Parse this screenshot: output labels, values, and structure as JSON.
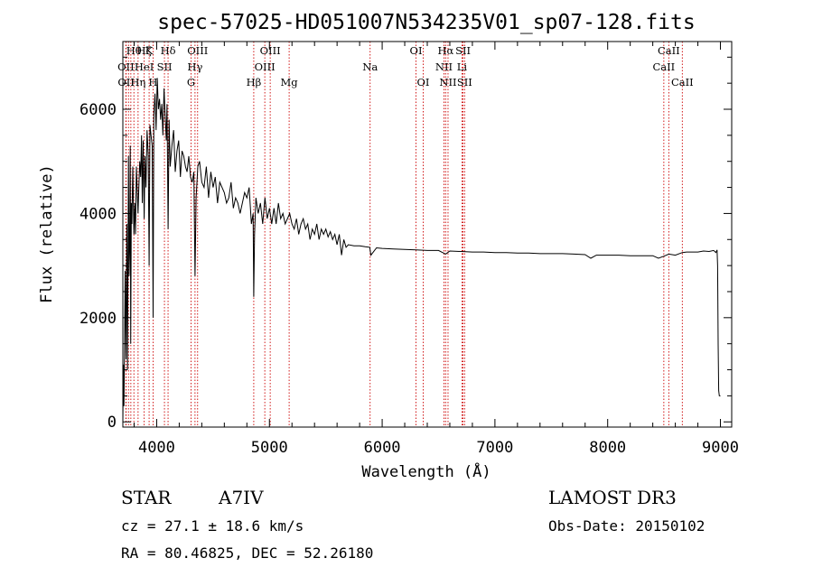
{
  "chart_data": {
    "type": "line",
    "title": "spec-57025-HD051007N534235V01_sp07-128.fits",
    "xlabel": "Wavelength (Å)",
    "ylabel": "Flux (relative)",
    "xlim": [
      3700,
      9100
    ],
    "ylim": [
      -100,
      7300
    ],
    "xticks": [
      4000,
      5000,
      6000,
      7000,
      8000,
      9000
    ],
    "xtick_labels": [
      "4000",
      "5000",
      "6000",
      "7000",
      "8000",
      "9000"
    ],
    "yticks": [
      0,
      2000,
      4000,
      6000
    ],
    "ytick_labels": [
      "0",
      "2000",
      "4000",
      "6000"
    ],
    "series": [
      {
        "name": "spectrum",
        "x": [
          3700,
          3705,
          3710,
          3715,
          3720,
          3728,
          3735,
          3742,
          3750,
          3755,
          3760,
          3766,
          3770,
          3775,
          3780,
          3788,
          3798,
          3806,
          3812,
          3820,
          3828,
          3835,
          3842,
          3850,
          3858,
          3866,
          3872,
          3880,
          3889,
          3896,
          3905,
          3915,
          3925,
          3933,
          3940,
          3950,
          3960,
          3968,
          3975,
          3985,
          3995,
          4005,
          4015,
          4025,
          4035,
          4045,
          4055,
          4065,
          4075,
          4085,
          4092,
          4101,
          4110,
          4120,
          4135,
          4150,
          4165,
          4180,
          4195,
          4210,
          4225,
          4240,
          4255,
          4270,
          4285,
          4300,
          4315,
          4330,
          4340,
          4350,
          4365,
          4380,
          4400,
          4420,
          4440,
          4460,
          4480,
          4500,
          4520,
          4540,
          4560,
          4580,
          4600,
          4620,
          4640,
          4660,
          4680,
          4700,
          4720,
          4740,
          4760,
          4780,
          4800,
          4820,
          4840,
          4855,
          4861,
          4868,
          4880,
          4900,
          4920,
          4940,
          4960,
          4980,
          5000,
          5020,
          5040,
          5060,
          5080,
          5100,
          5120,
          5140,
          5160,
          5180,
          5200,
          5220,
          5240,
          5260,
          5280,
          5300,
          5320,
          5340,
          5360,
          5380,
          5400,
          5420,
          5440,
          5460,
          5480,
          5500,
          5520,
          5540,
          5560,
          5580,
          5600,
          5620,
          5640,
          5660,
          5680,
          5700,
          5750,
          5800,
          5850,
          5890,
          5900,
          5950,
          6000,
          6100,
          6200,
          6300,
          6400,
          6500,
          6563,
          6600,
          6700,
          6800,
          6900,
          7000,
          7100,
          7200,
          7300,
          7400,
          7500,
          7600,
          7700,
          7800,
          7850,
          7900,
          8000,
          8100,
          8200,
          8300,
          8400,
          8450,
          8500,
          8542,
          8600,
          8662,
          8700,
          8800,
          8850,
          8900,
          8940,
          8960,
          8970,
          8975,
          8980,
          8985,
          8990,
          9000
        ],
        "y": [
          0,
          1100,
          300,
          1500,
          2900,
          1200,
          3800,
          1000,
          5100,
          2800,
          3300,
          5300,
          1500,
          4200,
          3800,
          4900,
          3600,
          4200,
          3600,
          4900,
          4400,
          4000,
          4500,
          5000,
          4700,
          5500,
          4200,
          5400,
          3900,
          5100,
          4500,
          5600,
          5100,
          3000,
          5700,
          5500,
          5300,
          2000,
          5900,
          6300,
          5600,
          6600,
          6000,
          6200,
          5800,
          6100,
          5500,
          6400,
          5900,
          5400,
          6100,
          3700,
          5800,
          4900,
          5300,
          5600,
          4800,
          5200,
          5400,
          4700,
          5200,
          5100,
          4900,
          4800,
          5100,
          4700,
          4600,
          4800,
          2800,
          4300,
          4900,
          5000,
          4600,
          4500,
          4900,
          4300,
          4800,
          4500,
          4700,
          4200,
          4600,
          4500,
          4400,
          4200,
          4300,
          4600,
          4100,
          4300,
          4200,
          4000,
          4200,
          4400,
          4300,
          4500,
          3800,
          4000,
          2400,
          3600,
          4300,
          4000,
          4200,
          3800,
          4300,
          3900,
          4100,
          3800,
          4100,
          3800,
          4200,
          3900,
          4000,
          3800,
          3900,
          4000,
          3800,
          3700,
          3900,
          3600,
          3800,
          3900,
          3700,
          3800,
          3500,
          3700,
          3600,
          3800,
          3500,
          3700,
          3600,
          3700,
          3550,
          3650,
          3500,
          3600,
          3400,
          3600,
          3200,
          3500,
          3350,
          3400,
          3380,
          3380,
          3360,
          3350,
          3200,
          3340,
          3330,
          3320,
          3310,
          3300,
          3290,
          3290,
          3220,
          3280,
          3270,
          3260,
          3260,
          3250,
          3250,
          3240,
          3240,
          3230,
          3230,
          3230,
          3220,
          3210,
          3140,
          3200,
          3200,
          3200,
          3190,
          3190,
          3190,
          3140,
          3180,
          3220,
          3200,
          3250,
          3260,
          3260,
          3280,
          3270,
          3290,
          3250,
          3300,
          3000,
          1500,
          600,
          500,
          500
        ]
      }
    ],
    "line_markers": [
      {
        "label": "Hθ",
        "wl": 3798,
        "row": 1
      },
      {
        "label": "OII",
        "wl": 3727,
        "row": 2
      },
      {
        "label": "OII",
        "wl": 3729,
        "row": 3
      },
      {
        "label": "Hη",
        "wl": 3835,
        "row": 3
      },
      {
        "label": "Hζ",
        "wl": 3889,
        "row": 1
      },
      {
        "label": "HeI",
        "wl": 3889,
        "row": 2
      },
      {
        "label": "K",
        "wl": 3933,
        "row": 1
      },
      {
        "label": "H",
        "wl": 3968,
        "row": 3
      },
      {
        "label": "Hδ",
        "wl": 4101,
        "row": 1
      },
      {
        "label": "SII",
        "wl": 4069,
        "row": 2
      },
      {
        "label": "OIII",
        "wl": 4363,
        "row": 1
      },
      {
        "label": "Hγ",
        "wl": 4340,
        "row": 2
      },
      {
        "label": "G",
        "wl": 4305,
        "row": 3
      },
      {
        "label": "Hβ",
        "wl": 4861,
        "row": 3
      },
      {
        "label": "OIII",
        "wl": 5007,
        "row": 1
      },
      {
        "label": "OIII",
        "wl": 4959,
        "row": 2
      },
      {
        "label": "Mg",
        "wl": 5175,
        "row": 3
      },
      {
        "label": "Na",
        "wl": 5893,
        "row": 2
      },
      {
        "label": "OI",
        "wl": 6300,
        "row": 1
      },
      {
        "label": "OI",
        "wl": 6364,
        "row": 3
      },
      {
        "label": "Hα",
        "wl": 6563,
        "row": 1
      },
      {
        "label": "NII",
        "wl": 6548,
        "row": 2
      },
      {
        "label": "NII",
        "wl": 6584,
        "row": 3
      },
      {
        "label": "SII",
        "wl": 6717,
        "row": 1
      },
      {
        "label": "Li",
        "wl": 6708,
        "row": 2
      },
      {
        "label": "SII",
        "wl": 6731,
        "row": 3
      },
      {
        "label": "CaII",
        "wl": 8542,
        "row": 1
      },
      {
        "label": "CaII",
        "wl": 8498,
        "row": 2
      },
      {
        "label": "CaII",
        "wl": 8662,
        "row": 3
      }
    ],
    "marker_lines": [
      3727,
      3729,
      3750,
      3771,
      3798,
      3835,
      3889,
      3933,
      3968,
      4069,
      4101,
      4305,
      4340,
      4363,
      4861,
      4959,
      5007,
      5175,
      5893,
      6300,
      6364,
      6548,
      6563,
      6584,
      6708,
      6717,
      6731,
      8498,
      8542,
      8662
    ],
    "grid": false
  },
  "info": {
    "object_class": "STAR",
    "subclass": "A7IV",
    "survey": "LAMOST DR3",
    "redshift_text": "cz = 27.1 ± 18.6 km/s",
    "obs_date_text": "Obs-Date: 20150102",
    "coords_text": "RA =  80.46825, DEC =  52.26180"
  },
  "colors": {
    "spectrum": "#000000",
    "marker_line": "#cc0000",
    "axis": "#000000"
  }
}
